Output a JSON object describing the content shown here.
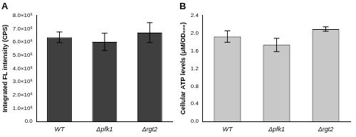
{
  "chart_data": [
    {
      "type": "bar",
      "title": "A",
      "y_label": "Integrated FL intensity (CPS)",
      "categories": [
        "WT",
        "Δpfk1",
        "Δrgt2"
      ],
      "values": [
        6350000,
        6000000,
        6700000
      ],
      "errors": [
        400000,
        650000,
        750000
      ],
      "color": "#3f3f3f",
      "ylim": [
        0,
        8000000
      ],
      "yticks": [
        {
          "value": 0,
          "label": "0.0"
        },
        {
          "value": 1000000,
          "label": "1.0×10⁶"
        },
        {
          "value": 2000000,
          "label": "2.0×10⁶"
        },
        {
          "value": 3000000,
          "label": "3.0×10⁶"
        },
        {
          "value": 4000000,
          "label": "4.0×10⁶"
        },
        {
          "value": 5000000,
          "label": "5.0×10⁶"
        },
        {
          "value": 6000000,
          "label": "6.0×10⁶"
        },
        {
          "value": 7000000,
          "label": "7.0×10⁶"
        },
        {
          "value": 8000000,
          "label": "8.0×10⁶"
        }
      ],
      "grid": false
    },
    {
      "type": "bar",
      "title": "B",
      "y_label": "Cellular ATP levels (μM/OD₆₀₀)",
      "categories": [
        "WT",
        "Δpfk1",
        "Δrgt2"
      ],
      "values": [
        1.92,
        1.73,
        2.09
      ],
      "errors": [
        0.13,
        0.15,
        0.05
      ],
      "color": "#c8c8c8",
      "ylim": [
        0,
        2.4
      ],
      "yticks": [
        {
          "value": 0,
          "label": "0.0"
        },
        0.4,
        0.8,
        1.2,
        1.6,
        {
          "value": 2,
          "label": "2.0"
        },
        2.4
      ],
      "grid": false
    }
  ]
}
